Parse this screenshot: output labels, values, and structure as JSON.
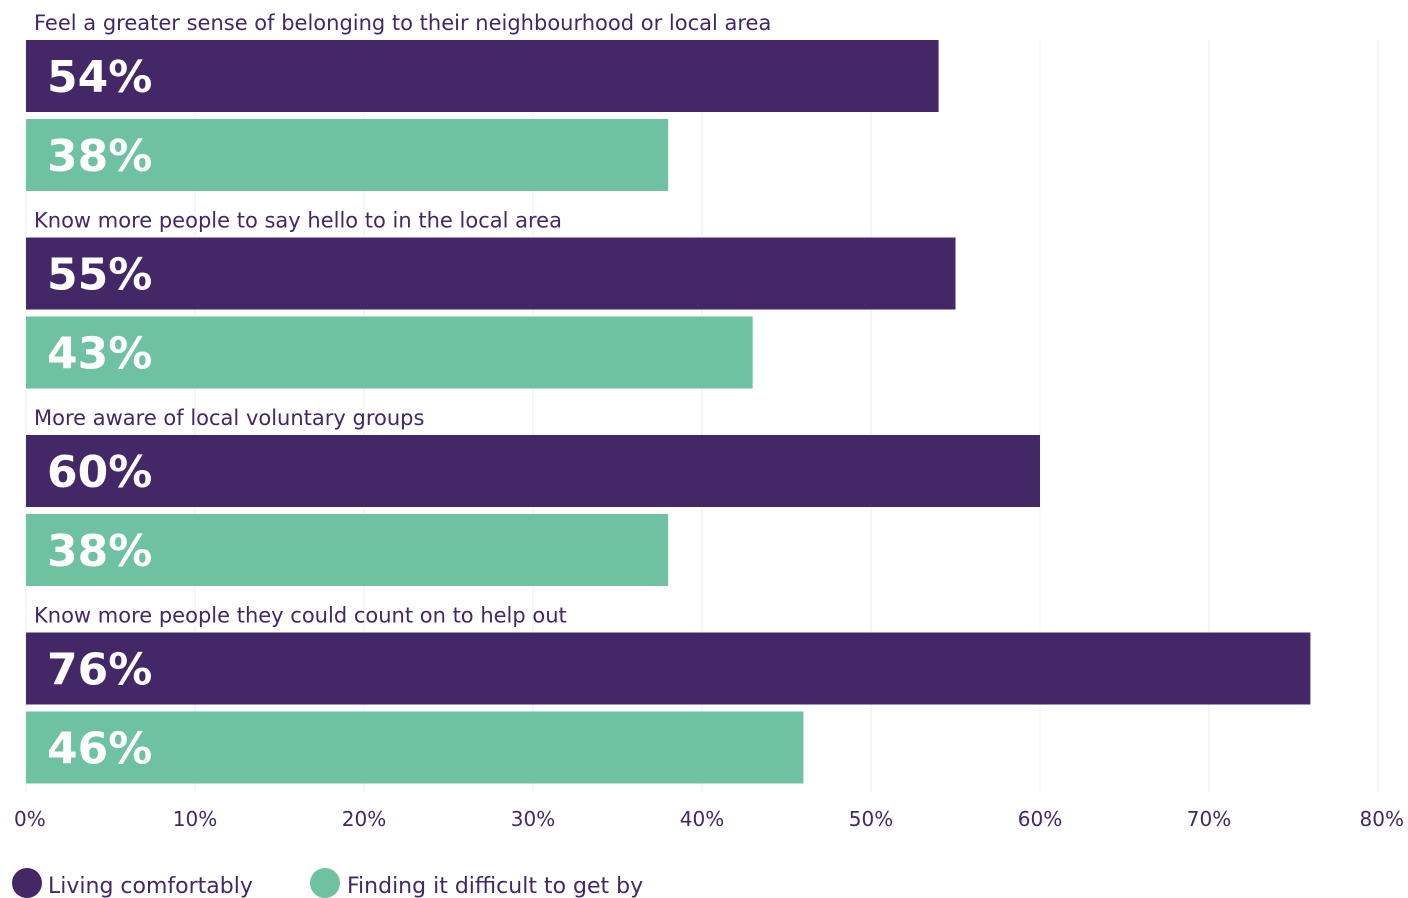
{
  "chart_data": {
    "type": "bar",
    "orientation": "horizontal",
    "categories": [
      "Feel a greater sense of belonging to their neighbourhood or local area",
      "Know more people to say hello to in the local area",
      "More aware of local voluntary groups",
      "Know more people they could count on to help out"
    ],
    "series": [
      {
        "name": "Living comfortably",
        "color": "#432767",
        "values": [
          54,
          55,
          60,
          76
        ],
        "labels": [
          "54%",
          "55%",
          "60%",
          "76%"
        ]
      },
      {
        "name": "Finding it difficult to get by",
        "color": "#6ec2a1",
        "values": [
          38,
          43,
          38,
          46
        ],
        "labels": [
          "38%",
          "43%",
          "38%",
          "46%"
        ]
      }
    ],
    "xlim": [
      0,
      80
    ],
    "xticks": [
      0,
      10,
      20,
      30,
      40,
      50,
      60,
      70,
      80
    ],
    "xtick_labels": [
      "0%",
      "10%",
      "20%",
      "30%",
      "40%",
      "50%",
      "60%",
      "70%",
      "80%"
    ],
    "grid": true,
    "legend_position": "bottom-left"
  }
}
